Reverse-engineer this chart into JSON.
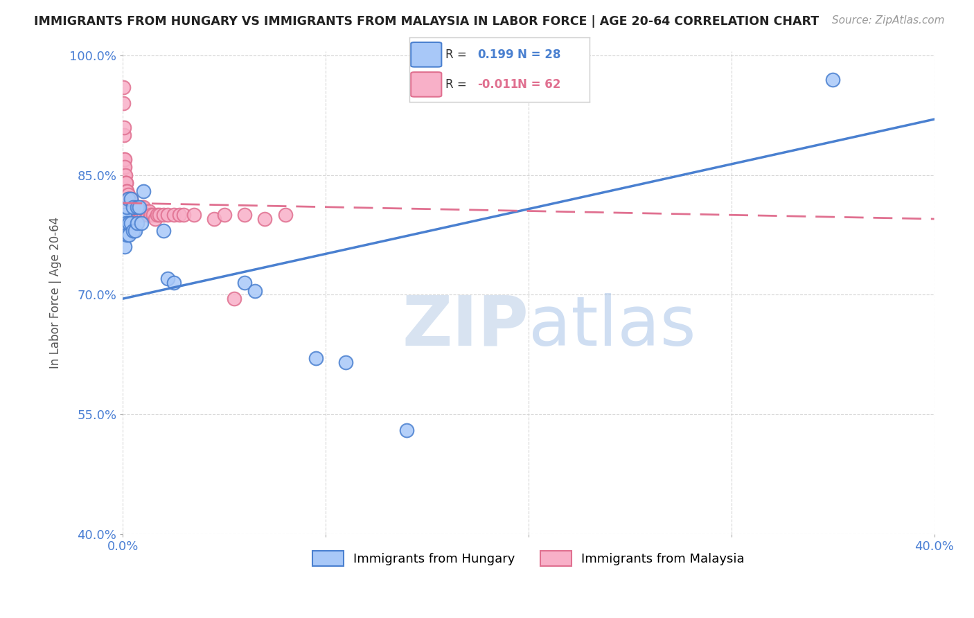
{
  "title": "IMMIGRANTS FROM HUNGARY VS IMMIGRANTS FROM MALAYSIA IN LABOR FORCE | AGE 20-64 CORRELATION CHART",
  "source": "Source: ZipAtlas.com",
  "ylabel": "In Labor Force | Age 20-64",
  "xlim": [
    0.0,
    0.4
  ],
  "ylim": [
    0.4,
    1.005
  ],
  "xticks": [
    0.0,
    0.1,
    0.2,
    0.3,
    0.4
  ],
  "xticklabels": [
    "0.0%",
    "",
    "",
    "",
    "40.0%"
  ],
  "yticks": [
    0.4,
    0.55,
    0.7,
    0.85,
    1.0
  ],
  "yticklabels": [
    "40.0%",
    "55.0%",
    "70.0%",
    "85.0%",
    "100.0%"
  ],
  "blue_color": "#a8c8f8",
  "pink_color": "#f8b0c8",
  "trend_blue": "#4a80d0",
  "trend_pink": "#e07090",
  "R_blue": 0.199,
  "N_blue": 28,
  "R_pink": -0.011,
  "N_pink": 62,
  "legend_blue": "Immigrants from Hungary",
  "legend_pink": "Immigrants from Malaysia",
  "hungary_x": [
    0.0005,
    0.001,
    0.001,
    0.0015,
    0.002,
    0.002,
    0.0025,
    0.003,
    0.003,
    0.004,
    0.004,
    0.005,
    0.005,
    0.006,
    0.007,
    0.007,
    0.008,
    0.009,
    0.01,
    0.02,
    0.022,
    0.025,
    0.06,
    0.065,
    0.095,
    0.11,
    0.14,
    0.35
  ],
  "hungary_y": [
    0.795,
    0.8,
    0.76,
    0.79,
    0.81,
    0.775,
    0.82,
    0.79,
    0.775,
    0.79,
    0.82,
    0.81,
    0.78,
    0.78,
    0.81,
    0.79,
    0.81,
    0.79,
    0.83,
    0.78,
    0.72,
    0.715,
    0.715,
    0.705,
    0.62,
    0.615,
    0.53,
    0.97
  ],
  "malaysia_x": [
    0.0002,
    0.0003,
    0.0004,
    0.0005,
    0.0006,
    0.0007,
    0.0008,
    0.001,
    0.001,
    0.001,
    0.0012,
    0.0013,
    0.0015,
    0.0017,
    0.002,
    0.002,
    0.0022,
    0.0025,
    0.003,
    0.003,
    0.003,
    0.003,
    0.0035,
    0.004,
    0.004,
    0.0045,
    0.005,
    0.005,
    0.005,
    0.0055,
    0.006,
    0.006,
    0.006,
    0.007,
    0.007,
    0.007,
    0.008,
    0.008,
    0.009,
    0.009,
    0.01,
    0.01,
    0.011,
    0.012,
    0.013,
    0.014,
    0.015,
    0.016,
    0.017,
    0.018,
    0.02,
    0.022,
    0.025,
    0.028,
    0.03,
    0.035,
    0.045,
    0.05,
    0.055,
    0.06,
    0.07,
    0.08
  ],
  "malaysia_y": [
    0.96,
    0.94,
    0.9,
    0.91,
    0.87,
    0.86,
    0.87,
    0.85,
    0.83,
    0.86,
    0.85,
    0.84,
    0.84,
    0.84,
    0.83,
    0.83,
    0.82,
    0.825,
    0.82,
    0.82,
    0.81,
    0.82,
    0.82,
    0.82,
    0.815,
    0.815,
    0.81,
    0.81,
    0.805,
    0.81,
    0.81,
    0.805,
    0.8,
    0.805,
    0.8,
    0.81,
    0.8,
    0.805,
    0.8,
    0.81,
    0.8,
    0.81,
    0.805,
    0.8,
    0.805,
    0.8,
    0.8,
    0.795,
    0.8,
    0.8,
    0.8,
    0.8,
    0.8,
    0.8,
    0.8,
    0.8,
    0.795,
    0.8,
    0.695,
    0.8,
    0.795,
    0.8
  ],
  "blue_trend_x0": 0.0,
  "blue_trend_y0": 0.695,
  "blue_trend_x1": 0.4,
  "blue_trend_y1": 0.92,
  "pink_trend_x0": 0.0,
  "pink_trend_y0": 0.815,
  "pink_trend_x1": 0.4,
  "pink_trend_y1": 0.795
}
